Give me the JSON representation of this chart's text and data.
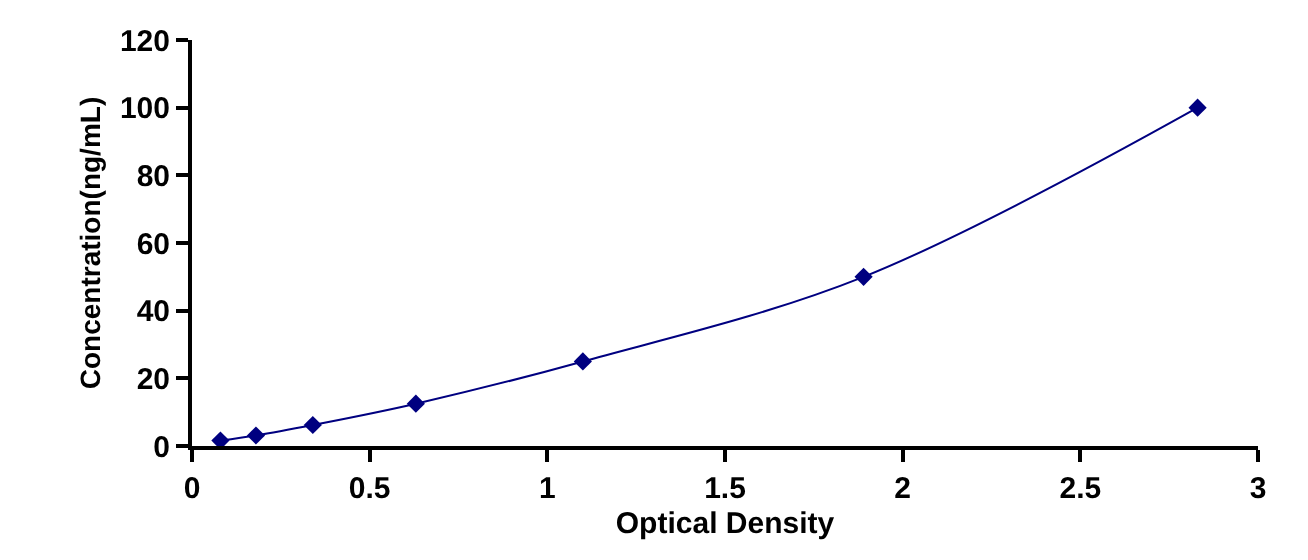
{
  "chart_data": {
    "type": "line",
    "xlabel": "Optical Density",
    "ylabel": "Concentration(ng/mL)",
    "x": [
      0.08,
      0.18,
      0.34,
      0.63,
      1.1,
      1.89,
      2.83
    ],
    "series": [
      {
        "color": "#000080",
        "values": [
          1.6,
          3.1,
          6.2,
          12.5,
          25,
          50,
          100
        ]
      }
    ],
    "xlim": [
      0,
      3
    ],
    "xticks": [
      0,
      0.5,
      1,
      1.5,
      2,
      2.5,
      3
    ],
    "ylim": [
      0,
      120
    ],
    "yticks": [
      0,
      20,
      40,
      60,
      80,
      100,
      120
    ],
    "marker": "diamond",
    "line_style": "solid",
    "legend": false
  }
}
